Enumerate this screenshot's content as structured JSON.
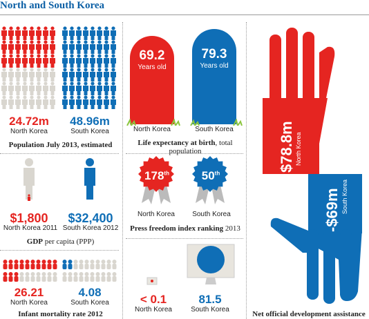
{
  "title": "North and South Korea",
  "colors": {
    "red": "#e52521",
    "blue": "#0f6eb6",
    "grey": "#d9d6cf",
    "green": "#8cc63f"
  },
  "population": {
    "north_value": "24.72m",
    "north_label": "North Korea",
    "south_value": "48.96m",
    "south_label": "South Korea",
    "caption": "Population July 2013, estimated"
  },
  "life_expectancy": {
    "north_value": "69.2",
    "north_unit": "Years old",
    "north_label": "North Korea",
    "south_value": "79.3",
    "south_unit": "Years old",
    "south_label": "South Korea",
    "caption_bold": "Life expectancy at birth",
    "caption_rest": ", total population"
  },
  "gdp": {
    "north_value": "$1,800",
    "north_label": "North Korea 2011",
    "south_value": "$32,400",
    "south_label": "South Korea 2012",
    "caption_bold": "GDP",
    "caption_rest": " per capita (PPP)"
  },
  "press": {
    "north_value": "178",
    "north_suffix": "th",
    "north_label": "North Korea",
    "south_value": "50",
    "south_suffix": "th",
    "south_label": "South Korea",
    "caption_bold": "Press freedom index ranking",
    "caption_rest": " 2013"
  },
  "infant": {
    "north_value": "26.21",
    "north_label": "North Korea",
    "south_value": "4.08",
    "south_label": "South Korea",
    "caption": "Infant mortality rate 2012"
  },
  "internet": {
    "north_value": "< 0.1",
    "north_label": "North Korea",
    "south_value": "81.5",
    "south_label": "South Korea"
  },
  "aid": {
    "north_value": "$78.8m",
    "north_label": "North Korea",
    "south_value": "-$69m",
    "south_label": "South Korea",
    "caption": "Net official development assistance"
  },
  "icons": [
    "person-icon",
    "grave-icon",
    "badge-icon",
    "monitor-icon",
    "hand-icon"
  ]
}
